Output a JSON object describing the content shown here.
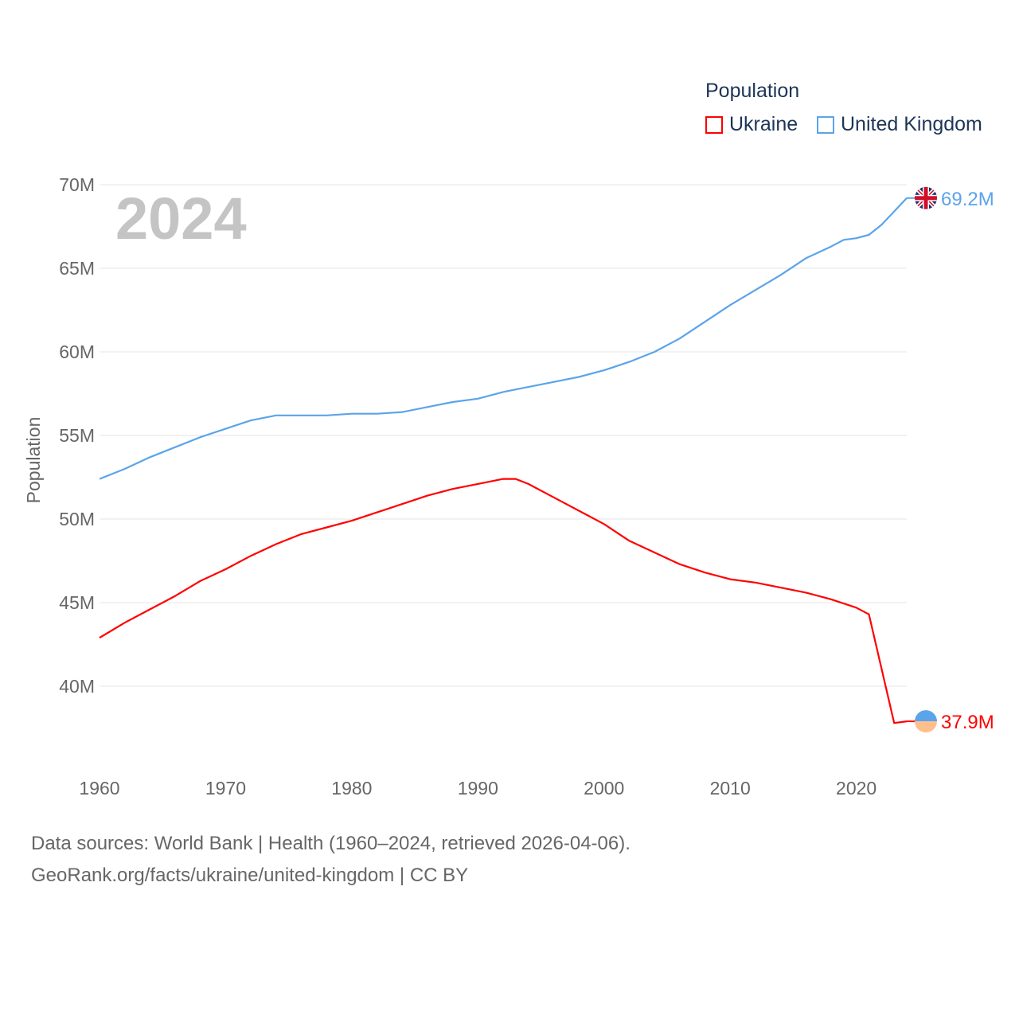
{
  "chart_data": {
    "type": "line",
    "title": "Population",
    "year_label": "2024",
    "xlabel": "",
    "ylabel": "Population",
    "xlim": [
      1960,
      2024
    ],
    "ylim": [
      36,
      70
    ],
    "x_ticks": [
      1960,
      1970,
      1980,
      1990,
      2000,
      2010,
      2020
    ],
    "x_tick_labels": [
      "1960",
      "1970",
      "1980",
      "1990",
      "2000",
      "2010",
      "2020"
    ],
    "y_ticks": [
      40,
      45,
      50,
      55,
      60,
      65,
      70
    ],
    "y_tick_labels": [
      "40M",
      "45M",
      "50M",
      "55M",
      "60M",
      "65M",
      "70M"
    ],
    "grid": true,
    "legend_position": "top-right",
    "series": [
      {
        "name": "Ukraine",
        "color": "#ff0000",
        "end_label": "37.9M",
        "marker": "ukraine-flag",
        "x": [
          1960,
          1962,
          1964,
          1966,
          1968,
          1970,
          1972,
          1974,
          1976,
          1978,
          1980,
          1982,
          1984,
          1986,
          1988,
          1990,
          1992,
          1993,
          1994,
          1996,
          1998,
          2000,
          2002,
          2004,
          2006,
          2008,
          2010,
          2012,
          2014,
          2016,
          2018,
          2020,
          2021,
          2023,
          2024
        ],
        "values": [
          42.9,
          43.8,
          44.6,
          45.4,
          46.3,
          47.0,
          47.8,
          48.5,
          49.1,
          49.5,
          49.9,
          50.4,
          50.9,
          51.4,
          51.8,
          52.1,
          52.4,
          52.4,
          52.1,
          51.3,
          50.5,
          49.7,
          48.7,
          48.0,
          47.3,
          46.8,
          46.4,
          46.2,
          45.9,
          45.6,
          45.2,
          44.7,
          44.3,
          37.8,
          37.9
        ]
      },
      {
        "name": "United Kingdom",
        "color": "#5ba4ea",
        "end_label": "69.2M",
        "marker": "uk-flag",
        "x": [
          1960,
          1962,
          1964,
          1966,
          1968,
          1970,
          1972,
          1974,
          1976,
          1978,
          1980,
          1982,
          1984,
          1986,
          1988,
          1990,
          1992,
          1994,
          1996,
          1998,
          2000,
          2002,
          2004,
          2006,
          2008,
          2010,
          2012,
          2014,
          2016,
          2018,
          2019,
          2020,
          2021,
          2022,
          2023,
          2024
        ],
        "values": [
          52.4,
          53.0,
          53.7,
          54.3,
          54.9,
          55.4,
          55.9,
          56.2,
          56.2,
          56.2,
          56.3,
          56.3,
          56.4,
          56.7,
          57.0,
          57.2,
          57.6,
          57.9,
          58.2,
          58.5,
          58.9,
          59.4,
          60.0,
          60.8,
          61.8,
          62.8,
          63.7,
          64.6,
          65.6,
          66.3,
          66.7,
          66.8,
          67.0,
          67.6,
          68.4,
          69.2
        ]
      }
    ]
  },
  "footer": {
    "line1": "Data sources: World Bank | Health (1960–2024, retrieved 2026-04-06).",
    "line2": "GeoRank.org/facts/ukraine/united-kingdom | CC BY"
  }
}
